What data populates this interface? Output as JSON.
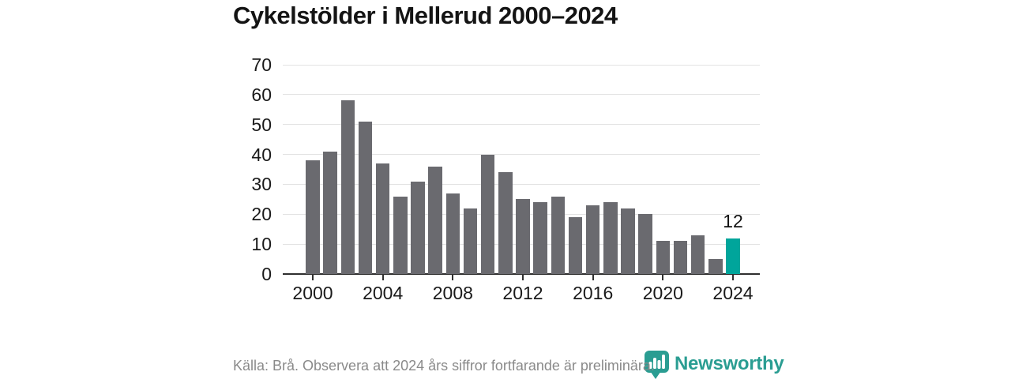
{
  "title": "Cykelstölder i Mellerud 2000–2024",
  "chart_data": {
    "type": "bar",
    "title": "Cykelstölder i Mellerud 2000–2024",
    "categories": [
      2000,
      2001,
      2002,
      2003,
      2004,
      2005,
      2006,
      2007,
      2008,
      2009,
      2010,
      2011,
      2012,
      2013,
      2014,
      2015,
      2016,
      2017,
      2018,
      2019,
      2020,
      2021,
      2022,
      2023,
      2024
    ],
    "values": [
      38,
      41,
      58,
      51,
      37,
      26,
      31,
      36,
      27,
      22,
      40,
      34,
      25,
      24,
      26,
      19,
      23,
      24,
      22,
      20,
      11,
      11,
      13,
      5,
      12
    ],
    "highlight_index": 24,
    "highlight_value_label": "12",
    "xlabel": "",
    "ylabel": "",
    "ylim": [
      0,
      70
    ],
    "yticks": [
      0,
      10,
      20,
      30,
      40,
      50,
      60,
      70
    ],
    "xticks": [
      2000,
      2004,
      2008,
      2012,
      2016,
      2020,
      2024
    ],
    "grid": "horizontal",
    "legend": "none",
    "colors": {
      "bar": "#6a6a6f",
      "highlight": "#00a59b"
    }
  },
  "footer": {
    "source_note": "Källa: Brå. Observera att 2024 års siffror fortfarande är preliminära."
  },
  "branding": {
    "name": "Newsworthy",
    "logo_color": "#2a9d92"
  }
}
